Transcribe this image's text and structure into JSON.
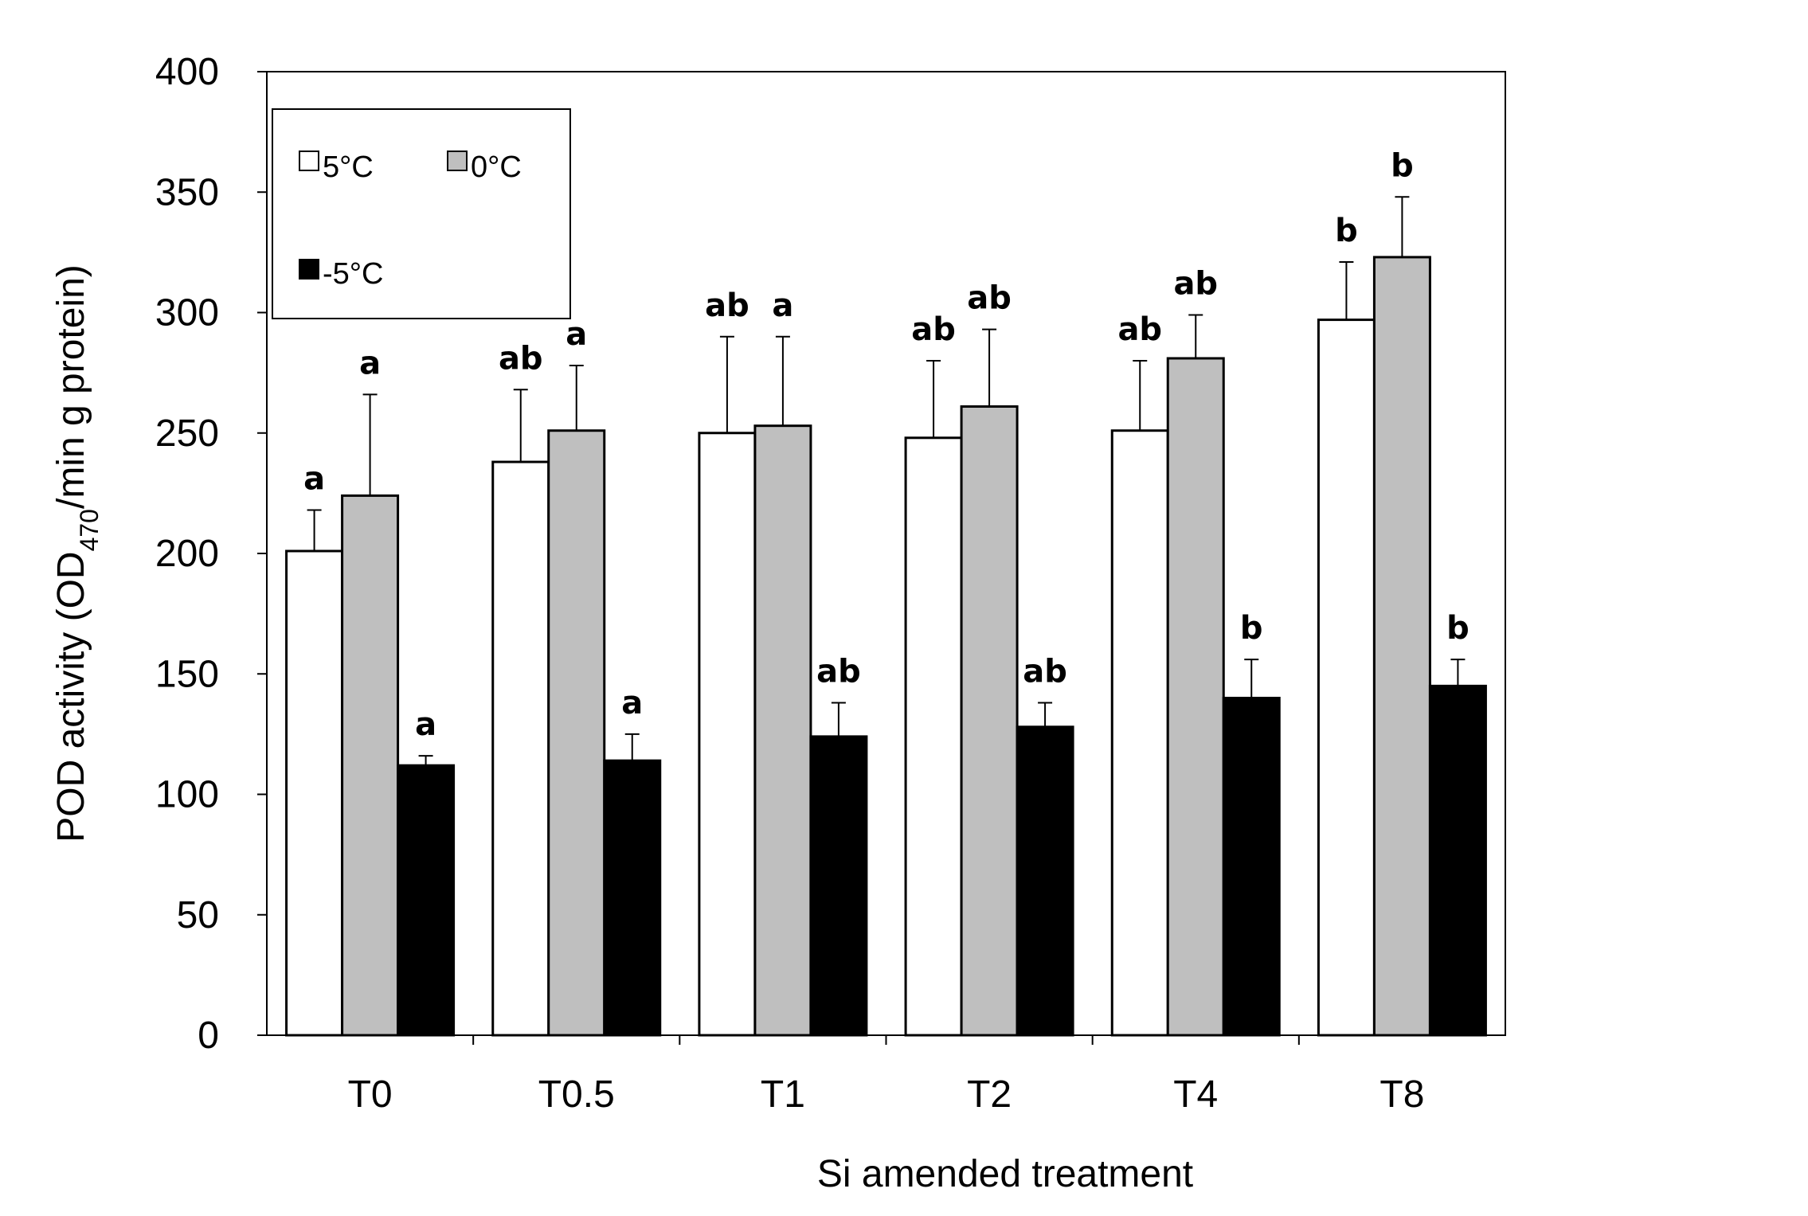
{
  "chart_data": {
    "type": "bar",
    "title": "",
    "xlabel": "Si amended treatment",
    "ylabel": {
      "main": "POD activity (OD",
      "subscript": "470",
      "rest": "/min g protein)"
    },
    "ylim": [
      0,
      400
    ],
    "yticks": [
      0,
      50,
      100,
      150,
      200,
      250,
      300,
      350,
      400
    ],
    "grid": false,
    "legend_position": "top-left",
    "categories": [
      "T0",
      "T0.5",
      "T1",
      "T2",
      "T4",
      "T8"
    ],
    "series": [
      {
        "name": "5°C",
        "color": "#ffffff",
        "values": [
          201,
          238,
          250,
          248,
          251,
          297
        ],
        "errors": [
          17,
          30,
          40,
          32,
          29,
          24
        ],
        "labels": [
          "a",
          "ab",
          "ab",
          "ab",
          "ab",
          "b"
        ]
      },
      {
        "name": "0°C",
        "color": "#bfbfbf",
        "values": [
          224,
          251,
          253,
          261,
          281,
          323
        ],
        "errors": [
          42,
          27,
          37,
          32,
          18,
          25
        ],
        "labels": [
          "a",
          "a",
          "a",
          "ab",
          "ab",
          "b"
        ]
      },
      {
        "name": "-5°C",
        "color": "#000000",
        "values": [
          112,
          114,
          124,
          128,
          140,
          145
        ],
        "errors": [
          4,
          11,
          14,
          10,
          16,
          11
        ],
        "labels": [
          "a",
          "a",
          "ab",
          "ab",
          "b",
          "b"
        ]
      }
    ]
  }
}
